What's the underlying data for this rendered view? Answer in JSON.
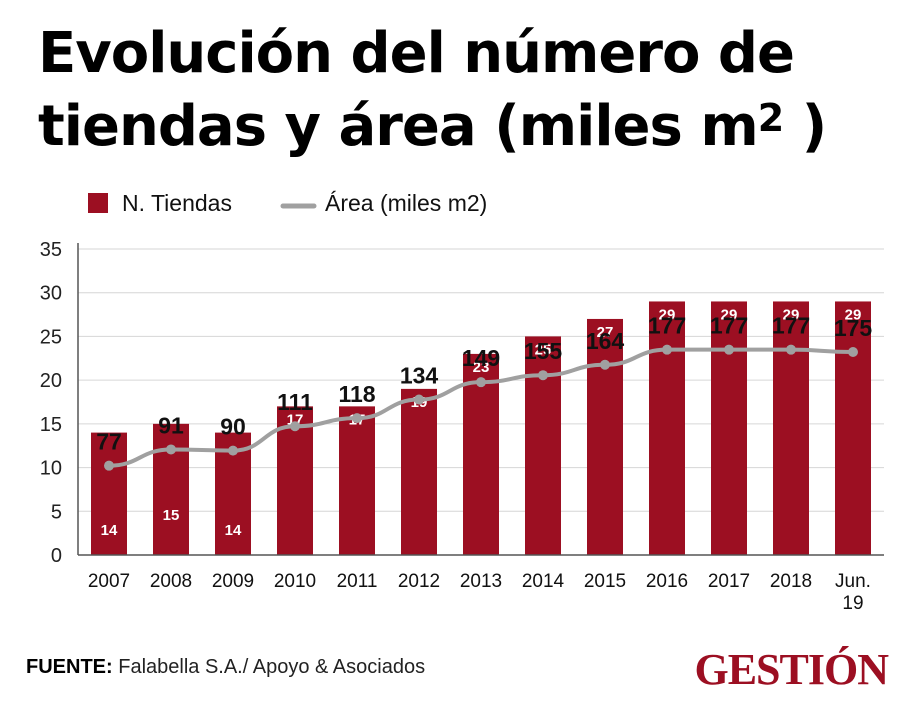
{
  "header": {
    "title_line1": "Evolución del número de",
    "title_line2": "tiendas y área (miles m",
    "title_sup": "2",
    "title_close": " )"
  },
  "colors": {
    "bar": "#9c0f22",
    "line": "#a0a0a0",
    "axis": "#555555",
    "grid": "#d6d6d6"
  },
  "chart_data": {
    "type": "bar",
    "categories": [
      "2007",
      "2008",
      "2009",
      "2010",
      "2011",
      "2012",
      "2013",
      "2014",
      "2015",
      "2016",
      "2017",
      "2018",
      "Jun.\n19"
    ],
    "ylim": [
      0,
      35
    ],
    "yticks": [
      0,
      5,
      10,
      15,
      20,
      25,
      30,
      35
    ],
    "legend_position": "top-left",
    "series": [
      {
        "name": "N. Tiendas",
        "kind": "bar",
        "values": [
          14,
          15,
          14,
          17,
          17,
          19,
          23,
          25,
          27,
          29,
          29,
          29,
          29
        ]
      },
      {
        "name": "Área (miles m2)",
        "kind": "line",
        "values": [
          77,
          91,
          90,
          111,
          118,
          134,
          149,
          155,
          164,
          177,
          177,
          177,
          175
        ]
      }
    ]
  },
  "footer": {
    "source_label": "FUENTE:",
    "source_text": " Falabella S.A./ Apoyo & Asociados",
    "logo": "GESTIÓN"
  }
}
